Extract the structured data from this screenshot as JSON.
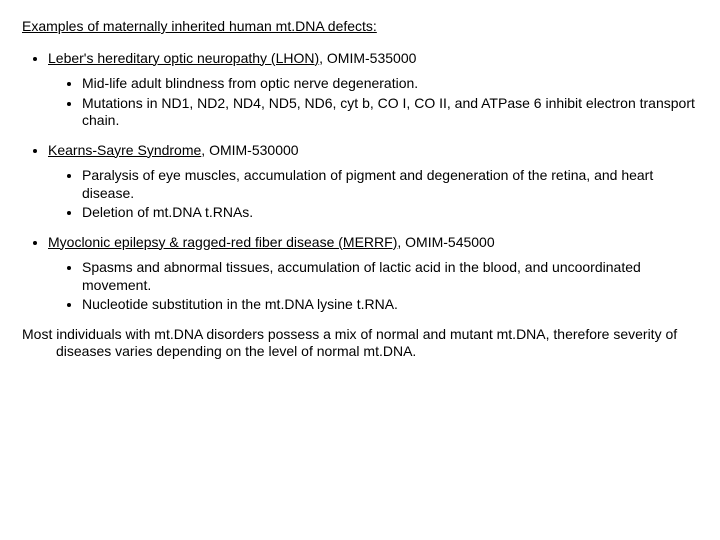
{
  "title": "Examples of maternally inherited human mt.DNA defects:",
  "items": [
    {
      "name_u": "Leber's hereditary optic neuropathy (LHON)",
      "name_rest": ", OMIM-535000",
      "sub": [
        "Mid-life adult blindness from optic nerve degeneration.",
        "Mutations in ND1, ND2, ND4, ND5, ND6, cyt b, CO I, CO II, and ATPase 6 inhibit electron transport chain."
      ]
    },
    {
      "name_u": "Kearns-Sayre Syndrome",
      "name_rest": ", OMIM-530000",
      "sub": [
        "Paralysis of eye muscles, accumulation of pigment and degeneration of the retina, and heart disease.",
        "Deletion of mt.DNA t.RNAs."
      ]
    },
    {
      "name_u": "Myoclonic epilepsy & ragged-red fiber disease (MERRF)",
      "name_rest": ", OMIM-545000",
      "sub": [
        "Spasms and abnormal tissues, accumulation of lactic acid in the blood, and uncoordinated movement.",
        "Nucleotide substitution in the mt.DNA lysine t.RNA."
      ]
    }
  ],
  "closing": "Most individuals with mt.DNA disorders possess a mix of normal and mutant mt.DNA, therefore severity of diseases varies depending on the level of normal mt.DNA."
}
